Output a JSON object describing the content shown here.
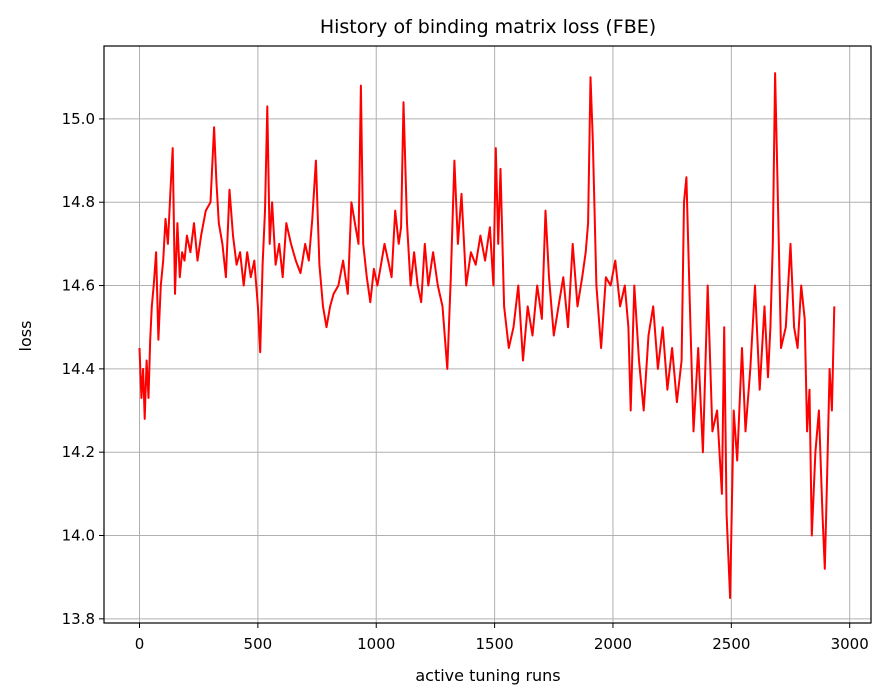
{
  "chart_data": {
    "type": "line",
    "title": "History of binding matrix loss (FBE)",
    "xlabel": "active tuning runs",
    "ylabel": "loss",
    "xlim": [
      -150,
      3090
    ],
    "ylim": [
      13.79,
      15.175
    ],
    "xticks": [
      0,
      500,
      1000,
      1500,
      2000,
      2500,
      3000
    ],
    "xtick_labels": [
      "0",
      "500",
      "1000",
      "1500",
      "2000",
      "2500",
      "3000"
    ],
    "yticks": [
      13.8,
      14.0,
      14.2,
      14.4,
      14.6,
      14.8,
      15.0
    ],
    "ytick_labels": [
      "13.8",
      "14.0",
      "14.2",
      "14.4",
      "14.6",
      "14.8",
      "15.0"
    ],
    "grid": true,
    "line_color": "#ff0000",
    "series": [
      {
        "x": [
          0,
          8,
          15,
          22,
          30,
          38,
          45,
          52,
          60,
          70,
          80,
          90,
          100,
          110,
          120,
          130,
          140,
          150,
          160,
          170,
          180,
          190,
          200,
          215,
          230,
          245,
          260,
          280,
          300,
          315,
          325,
          335,
          350,
          365,
          380,
          395,
          410,
          425,
          440,
          455,
          470,
          485,
          500,
          510,
          520,
          530,
          540,
          550,
          560,
          575,
          590,
          605,
          620,
          640,
          660,
          680,
          700,
          715,
          730,
          745,
          760,
          775,
          790,
          805,
          820,
          840,
          860,
          880,
          895,
          910,
          925,
          935,
          945,
          960,
          975,
          990,
          1005,
          1020,
          1035,
          1050,
          1065,
          1080,
          1095,
          1105,
          1115,
          1130,
          1145,
          1160,
          1175,
          1190,
          1205,
          1220,
          1240,
          1260,
          1280,
          1300,
          1315,
          1330,
          1345,
          1360,
          1380,
          1400,
          1420,
          1440,
          1460,
          1480,
          1495,
          1505,
          1515,
          1525,
          1540,
          1560,
          1580,
          1600,
          1620,
          1640,
          1660,
          1680,
          1700,
          1715,
          1730,
          1750,
          1770,
          1790,
          1810,
          1830,
          1850,
          1870,
          1885,
          1895,
          1905,
          1915,
          1930,
          1950,
          1970,
          1990,
          2010,
          2030,
          2050,
          2065,
          2075,
          2090,
          2110,
          2130,
          2150,
          2170,
          2190,
          2210,
          2230,
          2250,
          2270,
          2290,
          2300,
          2310,
          2325,
          2340,
          2360,
          2380,
          2400,
          2420,
          2440,
          2460,
          2470,
          2480,
          2495,
          2510,
          2525,
          2545,
          2560,
          2580,
          2600,
          2620,
          2640,
          2655,
          2665,
          2675,
          2685,
          2695,
          2710,
          2730,
          2750,
          2765,
          2780,
          2795,
          2810,
          2820,
          2830,
          2840,
          2855,
          2870,
          2885,
          2895,
          2905,
          2915,
          2925,
          2935
        ],
        "y": [
          14.45,
          14.33,
          14.4,
          14.28,
          14.42,
          14.33,
          14.47,
          14.55,
          14.6,
          14.68,
          14.47,
          14.6,
          14.66,
          14.76,
          14.7,
          14.82,
          14.93,
          14.58,
          14.75,
          14.62,
          14.68,
          14.66,
          14.72,
          14.68,
          14.75,
          14.66,
          14.72,
          14.78,
          14.8,
          14.98,
          14.85,
          14.75,
          14.7,
          14.62,
          14.83,
          14.72,
          14.65,
          14.68,
          14.6,
          14.68,
          14.62,
          14.66,
          14.55,
          14.44,
          14.65,
          14.78,
          15.03,
          14.7,
          14.8,
          14.65,
          14.7,
          14.62,
          14.75,
          14.7,
          14.66,
          14.63,
          14.7,
          14.66,
          14.76,
          14.9,
          14.65,
          14.55,
          14.5,
          14.55,
          14.58,
          14.6,
          14.66,
          14.58,
          14.8,
          14.75,
          14.7,
          15.08,
          14.7,
          14.62,
          14.56,
          14.64,
          14.6,
          14.65,
          14.7,
          14.66,
          14.62,
          14.78,
          14.7,
          14.74,
          15.04,
          14.75,
          14.6,
          14.68,
          14.6,
          14.56,
          14.7,
          14.6,
          14.68,
          14.6,
          14.55,
          14.4,
          14.62,
          14.9,
          14.7,
          14.82,
          14.6,
          14.68,
          14.65,
          14.72,
          14.66,
          14.74,
          14.6,
          14.93,
          14.7,
          14.88,
          14.55,
          14.45,
          14.5,
          14.6,
          14.42,
          14.55,
          14.48,
          14.6,
          14.52,
          14.78,
          14.62,
          14.48,
          14.55,
          14.62,
          14.5,
          14.7,
          14.55,
          14.62,
          14.68,
          14.75,
          15.1,
          14.95,
          14.6,
          14.45,
          14.62,
          14.6,
          14.66,
          14.55,
          14.6,
          14.5,
          14.3,
          14.6,
          14.42,
          14.3,
          14.48,
          14.55,
          14.4,
          14.5,
          14.35,
          14.45,
          14.32,
          14.42,
          14.8,
          14.86,
          14.55,
          14.25,
          14.45,
          14.2,
          14.6,
          14.25,
          14.3,
          14.1,
          14.5,
          14.05,
          13.85,
          14.3,
          14.18,
          14.45,
          14.25,
          14.4,
          14.6,
          14.35,
          14.55,
          14.38,
          14.5,
          14.7,
          15.11,
          14.85,
          14.45,
          14.5,
          14.7,
          14.5,
          14.45,
          14.6,
          14.52,
          14.25,
          14.35,
          14.0,
          14.2,
          14.3,
          14.05,
          13.92,
          14.15,
          14.4,
          14.3,
          14.55
        ]
      }
    ]
  }
}
